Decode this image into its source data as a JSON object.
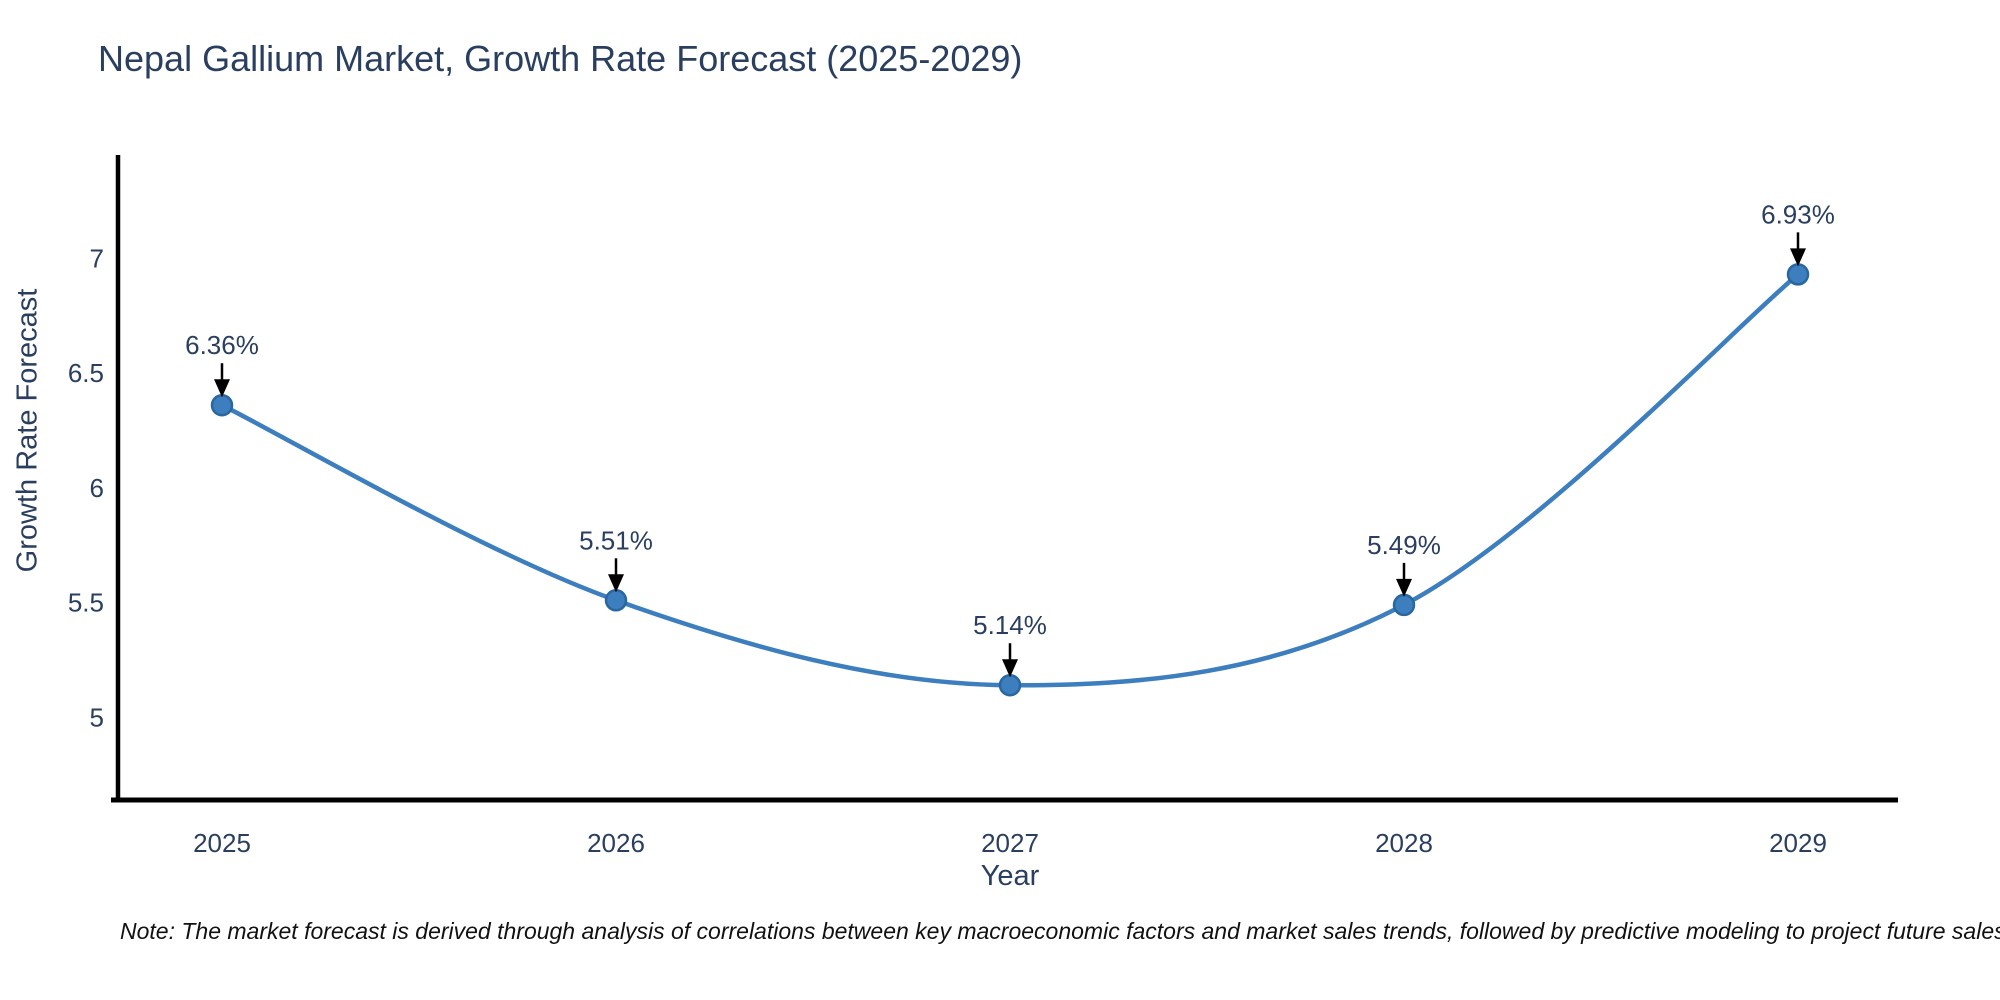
{
  "title": "Nepal Gallium Market, Growth Rate Forecast (2025-2029)",
  "note": "Note: The market forecast is derived through analysis of correlations between key macroeconomic factors and market sales trends, followed by predictive modeling to project future sales",
  "chart_data": {
    "type": "line",
    "title": "Nepal Gallium Market, Growth Rate Forecast (2025-2029)",
    "xlabel": "Year",
    "ylabel": "Growth Rate Forecast",
    "categories": [
      "2025",
      "2026",
      "2027",
      "2028",
      "2029"
    ],
    "series": [
      {
        "name": "Growth Rate Forecast",
        "values": [
          6.36,
          5.51,
          5.14,
          5.49,
          6.93
        ],
        "point_labels": [
          "6.36%",
          "5.51%",
          "5.14%",
          "5.49%",
          "6.93%"
        ]
      }
    ],
    "yticks": [
      "5",
      "5.5",
      "6",
      "6.5",
      "7"
    ],
    "ytick_values": [
      5,
      5.5,
      6,
      6.5,
      7
    ],
    "ylim": [
      4.64,
      7.45
    ],
    "grid": false,
    "legend_position": "none",
    "line_shape": "spline",
    "colors": {
      "line": "#3d7ebf",
      "marker_fill": "#3d7ebf",
      "marker_edge": "#2a679f",
      "axis": "#000000",
      "text": "#2a3f5f",
      "annotation_arrow": "#000000"
    }
  }
}
